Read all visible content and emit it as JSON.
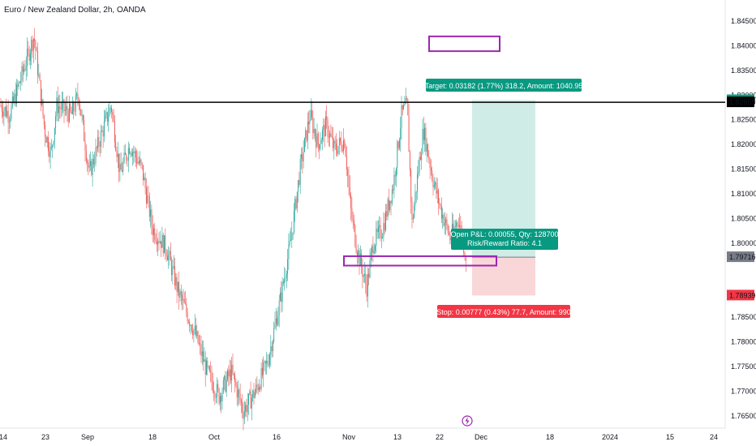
{
  "header": {
    "title": "Euro / New Zealand Dollar, 2h, OANDA"
  },
  "colors": {
    "up": "#26a69a",
    "down": "#ef5350",
    "target_zone": "#cfece6",
    "stop_zone": "#f9d6d7",
    "target_tag": "#089981",
    "stop_tag": "#f23645",
    "pnl_tag": "#089981",
    "box": "#9c27b0",
    "hline": "#000000",
    "price_tag": "#787b86"
  },
  "chart_data": {
    "type": "candlestick",
    "symbol": "EURNZD",
    "interval": "2h",
    "ylim": [
      1.7625,
      1.8475
    ],
    "y_ticks": [
      "1.84500",
      "1.84000",
      "1.83500",
      "1.83000",
      "1.82500",
      "1.82000",
      "1.81500",
      "1.81000",
      "1.80500",
      "1.80000",
      "1.78500",
      "1.78000",
      "1.77500",
      "1.77000",
      "1.76500"
    ],
    "x_ticks": [
      "14",
      "23",
      "Sep",
      "18",
      "Oct",
      "16",
      "Nov",
      "13",
      "22",
      "Dec",
      "18",
      "2024",
      "15",
      "24"
    ],
    "path_points": [
      [
        0,
        1.828
      ],
      [
        12,
        1.826
      ],
      [
        25,
        1.833
      ],
      [
        42,
        1.842
      ],
      [
        55,
        1.823
      ],
      [
        63,
        1.818
      ],
      [
        70,
        1.828
      ],
      [
        88,
        1.826
      ],
      [
        97,
        1.83
      ],
      [
        110,
        1.814
      ],
      [
        125,
        1.822
      ],
      [
        137,
        1.828
      ],
      [
        148,
        1.814
      ],
      [
        160,
        1.82
      ],
      [
        175,
        1.815
      ],
      [
        188,
        1.803
      ],
      [
        205,
        1.799
      ],
      [
        220,
        1.79
      ],
      [
        240,
        1.782
      ],
      [
        255,
        1.774
      ],
      [
        270,
        1.769
      ],
      [
        285,
        1.774
      ],
      [
        300,
        1.766
      ],
      [
        315,
        1.77
      ],
      [
        330,
        1.776
      ],
      [
        345,
        1.788
      ],
      [
        358,
        1.8
      ],
      [
        370,
        1.815
      ],
      [
        382,
        1.826
      ],
      [
        392,
        1.82
      ],
      [
        402,
        1.824
      ],
      [
        412,
        1.819
      ],
      [
        425,
        1.821
      ],
      [
        432,
        1.807
      ],
      [
        440,
        1.799
      ],
      [
        452,
        1.791
      ],
      [
        460,
        1.8
      ],
      [
        472,
        1.803
      ],
      [
        485,
        1.812
      ],
      [
        495,
        1.826
      ],
      [
        502,
        1.828
      ],
      [
        508,
        1.804
      ],
      [
        515,
        1.814
      ],
      [
        522,
        1.823
      ],
      [
        535,
        1.812
      ],
      [
        545,
        1.806
      ],
      [
        555,
        1.801
      ],
      [
        565,
        1.805
      ],
      [
        575,
        1.797
      ]
    ],
    "horizontal_line": {
      "price": 1.82855,
      "label": "1.82855"
    },
    "price_tags": [
      {
        "label": "1.82898",
        "price": 1.82898,
        "style": "target"
      },
      {
        "label": "1.79771",
        "price": 1.79771,
        "style": "plain"
      },
      {
        "label": "1.79716",
        "price": 1.79716,
        "style": "current"
      },
      {
        "label": "1.78939",
        "price": 1.78939,
        "style": "stop"
      }
    ],
    "position": {
      "type": "long",
      "entry": 1.79716,
      "target": 1.82898,
      "stop": 1.78939,
      "target_label": "Target: 0.03182 (1.77%) 318.2, Amount: 1040.95",
      "stop_label": "Stop: 0.00777 (0.43%) 77.7, Amount: 990",
      "pnl_label": "Open P&L: 0.00055, Qty: 128700",
      "rr_label": "Risk/Reward Ratio: 4.1"
    },
    "boxes": [
      {
        "name": "upper-box",
        "price_top": 1.8419,
        "price_bottom": 1.8389
      },
      {
        "name": "support-box",
        "price_top": 1.79735,
        "price_bottom": 1.79545
      }
    ]
  }
}
